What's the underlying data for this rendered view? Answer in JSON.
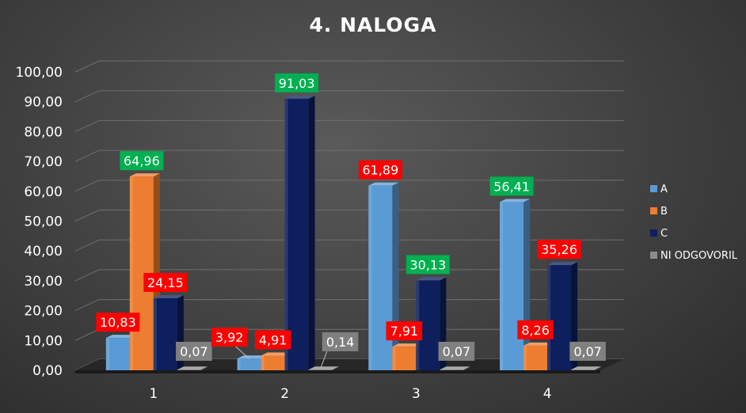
{
  "chart_data": {
    "type": "bar",
    "title": "4. NALOGA",
    "xlabel": "",
    "ylabel": "",
    "categories": [
      "1",
      "2",
      "3",
      "4"
    ],
    "ylim": [
      0,
      100
    ],
    "yticks": [
      "0,00",
      "10,00",
      "20,00",
      "30,00",
      "40,00",
      "50,00",
      "60,00",
      "70,00",
      "80,00",
      "90,00",
      "100,00"
    ],
    "series": [
      {
        "name": "A",
        "values": [
          10.83,
          3.92,
          61.89,
          56.41
        ],
        "labels": [
          "10,83",
          "3,92",
          "61,89",
          "56,41"
        ],
        "color": "#5b9bd5"
      },
      {
        "name": "B",
        "values": [
          64.96,
          4.91,
          7.91,
          8.26
        ],
        "labels": [
          "64,96",
          "4,91",
          "7,91",
          "8,26"
        ],
        "color": "#ed7d31"
      },
      {
        "name": "C",
        "values": [
          24.15,
          91.03,
          30.13,
          35.26
        ],
        "labels": [
          "24,15",
          "91,03",
          "30,13",
          "35,26"
        ],
        "color": "#0d1f5c"
      },
      {
        "name": "NI ODGOVORIL",
        "values": [
          0.07,
          0.14,
          0.07,
          0.07
        ],
        "labels": [
          "0,07",
          "0,14",
          "0,07",
          "0,07"
        ],
        "color": "#8c8c8c"
      }
    ],
    "label_colors": {
      "correct": "#00b050",
      "wrong": "#ff0000",
      "none": "#808080"
    },
    "correct_series_per_category": [
      "B",
      "C",
      "C",
      "A"
    ],
    "legend_position": "right",
    "grid": true
  }
}
